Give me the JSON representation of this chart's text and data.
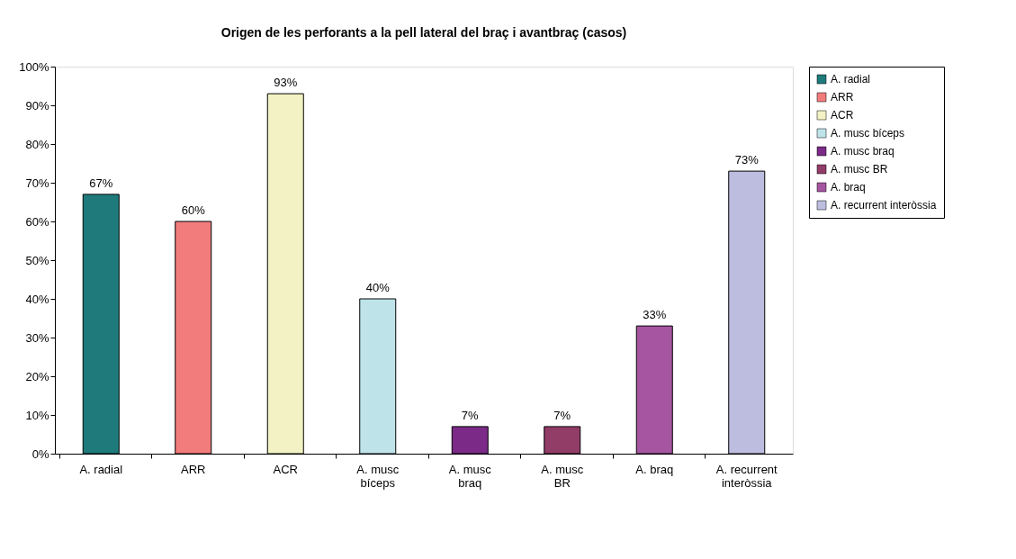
{
  "chart_data": {
    "type": "bar",
    "title": "Origen de les perforants a la pell lateral del braç i avantbraç (casos)",
    "categories": [
      "A. radial",
      "ARR",
      "ACR",
      "A. musc bíceps",
      "A. musc braq",
      "A. musc BR",
      "A. braq",
      "A. recurrent interòssia"
    ],
    "series": [
      {
        "name": "A. radial",
        "color": "#1f7b7b",
        "values": [
          67,
          null,
          null,
          null,
          null,
          null,
          null,
          null
        ],
        "value_labels": [
          "67%",
          null,
          null,
          null,
          null,
          null,
          null,
          null
        ]
      },
      {
        "name": "ARR",
        "color": "#f27c7c",
        "values": [
          null,
          60,
          null,
          null,
          null,
          null,
          null,
          null
        ],
        "value_labels": [
          null,
          "60%",
          null,
          null,
          null,
          null,
          null,
          null
        ]
      },
      {
        "name": "ACR",
        "color": "#f2f2c4",
        "values": [
          null,
          null,
          93,
          null,
          null,
          null,
          null,
          null
        ],
        "value_labels": [
          null,
          null,
          "93%",
          null,
          null,
          null,
          null,
          null
        ]
      },
      {
        "name": "A. musc bíceps",
        "color": "#bee4ea",
        "values": [
          null,
          null,
          null,
          40,
          null,
          null,
          null,
          null
        ],
        "value_labels": [
          null,
          null,
          null,
          "40%",
          null,
          null,
          null,
          null
        ]
      },
      {
        "name": "A. musc braq",
        "color": "#7b2a87",
        "values": [
          null,
          null,
          null,
          null,
          7,
          null,
          null,
          null
        ],
        "value_labels": [
          null,
          null,
          null,
          null,
          "7%",
          null,
          null,
          null
        ]
      },
      {
        "name": "A. musc BR",
        "color": "#923c68",
        "values": [
          null,
          null,
          null,
          null,
          null,
          7,
          null,
          null
        ],
        "value_labels": [
          null,
          null,
          null,
          null,
          null,
          "7%",
          null,
          null
        ]
      },
      {
        "name": "A. braq",
        "color": "#a655a0",
        "values": [
          null,
          null,
          null,
          null,
          null,
          null,
          33,
          null
        ],
        "value_labels": [
          null,
          null,
          null,
          null,
          null,
          null,
          "33%",
          null
        ]
      },
      {
        "name": "A. recurrent interòssia",
        "color": "#bdbde0",
        "values": [
          null,
          null,
          null,
          null,
          null,
          null,
          null,
          73
        ],
        "value_labels": [
          null,
          null,
          null,
          null,
          null,
          null,
          null,
          "73%"
        ]
      }
    ],
    "ylim": [
      0,
      100
    ],
    "yticks": [
      {
        "value": 0,
        "label": "0%"
      },
      {
        "value": 10,
        "label": "10%"
      },
      {
        "value": 20,
        "label": "20%"
      },
      {
        "value": 30,
        "label": "30%"
      },
      {
        "value": 40,
        "label": "40%"
      },
      {
        "value": 50,
        "label": "50%"
      },
      {
        "value": 60,
        "label": "60%"
      },
      {
        "value": 70,
        "label": "70%"
      },
      {
        "value": 80,
        "label": "80%"
      },
      {
        "value": 90,
        "label": "90%"
      },
      {
        "value": 100,
        "label": "100%"
      }
    ],
    "grid": false,
    "legend": "right"
  }
}
